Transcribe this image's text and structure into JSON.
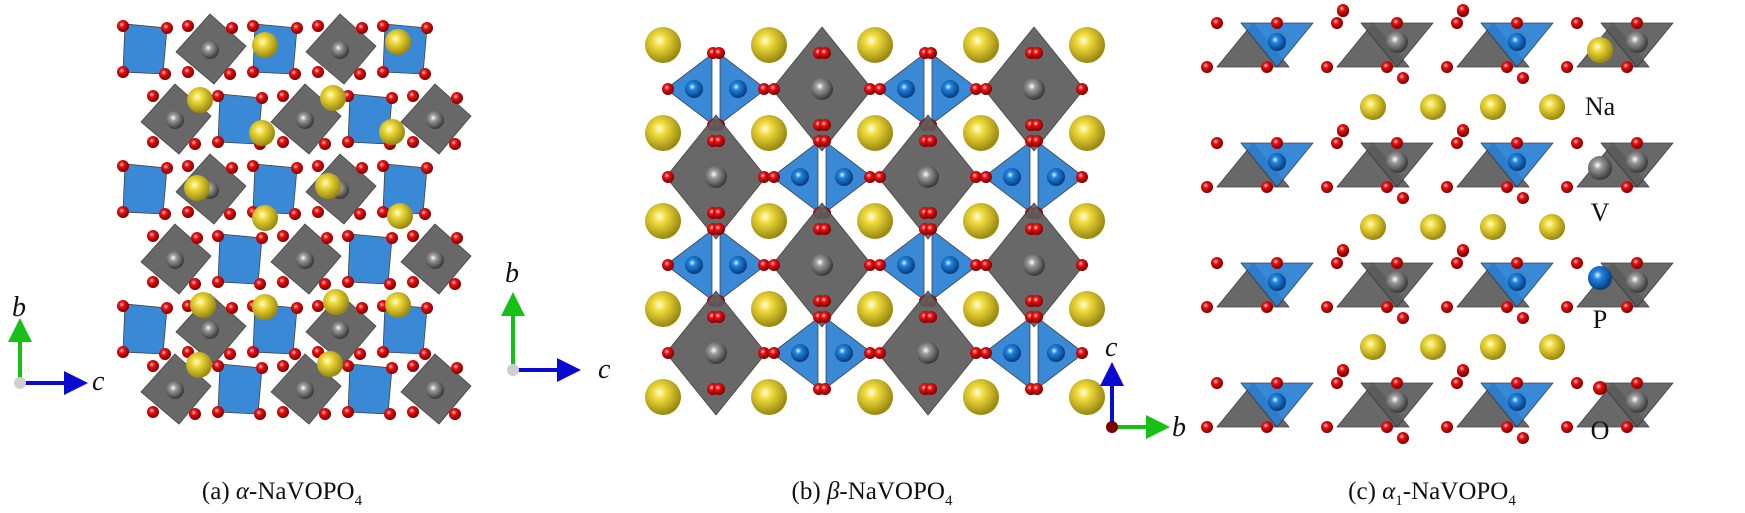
{
  "colors": {
    "Na": "#d9c22e",
    "V": "#7a7a7a",
    "P": "#1f78d1",
    "O": "#e01010",
    "polyV": "#5c5c5c",
    "polyP": "#2a7fd4",
    "axis_a": "#0a0ad0",
    "axis_b": "#16c016",
    "axis_c": "#0a0ad0"
  },
  "panels": [
    {
      "id": "a",
      "caption_prefix": "(a) ",
      "phase": "α",
      "phase_sub": "",
      "formula": "-NaVOPO",
      "formula_sub": "4",
      "axes": {
        "vertical": "b",
        "horizontal": "c"
      }
    },
    {
      "id": "b",
      "caption_prefix": "(b) ",
      "phase": "β",
      "phase_sub": "",
      "formula": "-NaVOPO",
      "formula_sub": "4",
      "axes": {
        "vertical": "b",
        "horizontal": "c"
      }
    },
    {
      "id": "c",
      "caption_prefix": "(c) ",
      "phase": "α",
      "phase_sub": "1",
      "formula": "-NaVOPO",
      "formula_sub": "4",
      "axes": {
        "vertical": "c",
        "horizontal": "b"
      }
    }
  ],
  "legend": [
    {
      "element": "Na",
      "label": "Na"
    },
    {
      "element": "V",
      "label": "V"
    },
    {
      "element": "P",
      "label": "P"
    },
    {
      "element": "O",
      "label": "O"
    }
  ]
}
